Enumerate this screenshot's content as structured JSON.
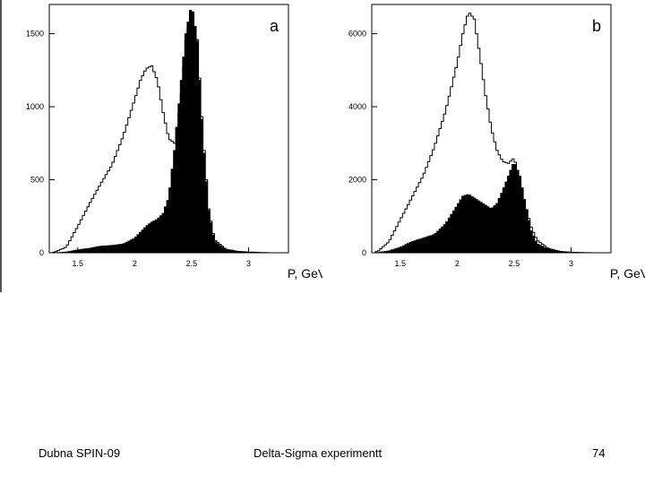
{
  "chart_data": [
    {
      "type": "area",
      "panel_label": "a",
      "xlabel": "P, GeV/c",
      "xlim": [
        1.25,
        3.35
      ],
      "ylim": [
        0,
        1700
      ],
      "x_ticks": [
        1.5,
        2,
        2.5,
        3
      ],
      "x_tick_labels": [
        "1.5",
        "2",
        "2.5",
        "3"
      ],
      "y_ticks": [
        0,
        500,
        1000,
        1500
      ],
      "y_tick_labels": [
        "0",
        "500",
        "1000",
        "1500"
      ],
      "series": [
        {
          "style": "outline",
          "x": [
            1.3,
            1.4,
            1.5,
            1.6,
            1.7,
            1.8,
            1.9,
            2.0,
            2.05,
            2.1,
            2.15,
            2.2,
            2.25,
            2.3,
            2.35,
            2.4,
            2.45,
            2.5,
            2.55,
            2.6,
            2.65,
            2.7,
            2.8,
            2.9,
            3.0,
            3.1,
            3.2,
            3.3
          ],
          "y": [
            5,
            40,
            180,
            330,
            470,
            600,
            800,
            1050,
            1180,
            1260,
            1280,
            1180,
            960,
            780,
            750,
            1000,
            1450,
            1680,
            1460,
            800,
            300,
            90,
            25,
            10,
            5,
            2,
            0,
            0
          ]
        },
        {
          "style": "filled",
          "x": [
            1.3,
            1.4,
            1.5,
            1.6,
            1.7,
            1.8,
            1.9,
            2.0,
            2.05,
            2.1,
            2.15,
            2.2,
            2.25,
            2.3,
            2.35,
            2.4,
            2.45,
            2.5,
            2.55,
            2.6,
            2.65,
            2.7,
            2.8,
            2.9,
            3.0,
            3.1,
            3.2,
            3.3
          ],
          "y": [
            0,
            5,
            20,
            30,
            45,
            50,
            60,
            100,
            140,
            180,
            210,
            230,
            270,
            380,
            700,
            1100,
            1500,
            1700,
            1450,
            780,
            290,
            80,
            20,
            8,
            4,
            1,
            0,
            0
          ]
        }
      ]
    },
    {
      "type": "area",
      "panel_label": "b",
      "xlabel": "P, GeV/c",
      "xlim": [
        1.25,
        3.35
      ],
      "ylim": [
        0,
        6800
      ],
      "x_ticks": [
        1.5,
        2,
        2.5,
        3
      ],
      "x_tick_labels": [
        "1.5",
        "2",
        "2.5",
        "3"
      ],
      "y_ticks": [
        0,
        2000,
        4000,
        6000
      ],
      "y_tick_labels": [
        "0",
        "2000",
        "4000",
        "6000"
      ],
      "series": [
        {
          "style": "outline",
          "x": [
            1.3,
            1.4,
            1.5,
            1.6,
            1.7,
            1.8,
            1.9,
            2.0,
            2.05,
            2.1,
            2.15,
            2.2,
            2.25,
            2.3,
            2.35,
            2.4,
            2.45,
            2.5,
            2.55,
            2.6,
            2.65,
            2.7,
            2.8,
            2.9,
            3.0,
            3.1,
            3.2,
            3.3
          ],
          "y": [
            30,
            300,
            900,
            1500,
            2100,
            2900,
            3900,
            5200,
            6000,
            6600,
            6400,
            5400,
            4300,
            3400,
            2800,
            2500,
            2450,
            2600,
            2000,
            1300,
            700,
            350,
            120,
            40,
            15,
            5,
            0,
            0
          ]
        },
        {
          "style": "filled",
          "x": [
            1.3,
            1.4,
            1.5,
            1.6,
            1.7,
            1.8,
            1.9,
            2.0,
            2.05,
            2.1,
            2.15,
            2.2,
            2.25,
            2.3,
            2.35,
            2.4,
            2.45,
            2.5,
            2.55,
            2.6,
            2.65,
            2.7,
            2.8,
            2.9,
            3.0,
            3.1,
            3.2,
            3.3
          ],
          "y": [
            5,
            50,
            150,
            300,
            400,
            500,
            800,
            1300,
            1550,
            1600,
            1500,
            1400,
            1300,
            1200,
            1350,
            1700,
            2100,
            2500,
            2100,
            1300,
            600,
            250,
            100,
            30,
            10,
            3,
            0,
            0
          ]
        }
      ]
    }
  ],
  "footer": {
    "left": "Dubna SPIN-09",
    "center": "Delta-Sigma experimentt",
    "right": "74"
  }
}
